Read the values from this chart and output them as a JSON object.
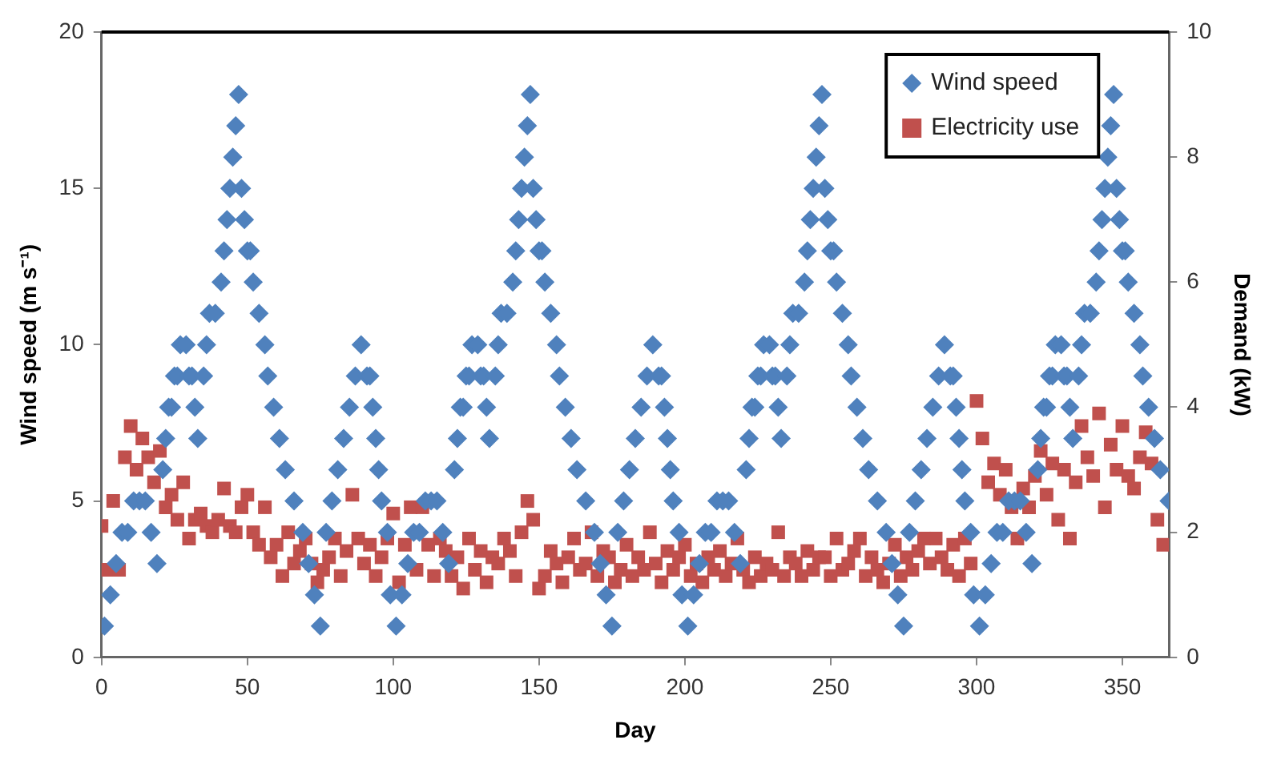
{
  "chart_data": {
    "type": "scatter",
    "xlabel": "Day",
    "ylabel": "Wind speed (m s⁻¹)",
    "y2label": "Demand (kW)",
    "xlim": [
      0,
      366
    ],
    "xticks": [
      0,
      50,
      100,
      150,
      200,
      250,
      300,
      350
    ],
    "ylim": [
      0,
      20
    ],
    "yticks": [
      0,
      5,
      10,
      15,
      20
    ],
    "y2lim": [
      0,
      10
    ],
    "y2ticks": [
      0,
      2,
      4,
      6,
      8,
      10
    ],
    "grid": false,
    "legend": "top right",
    "series": [
      {
        "name": "Wind speed",
        "color": "#4f81bd",
        "marker": "diamond",
        "x": [
          1,
          3,
          5,
          7,
          9,
          11,
          13,
          15,
          17,
          19,
          21,
          22,
          23,
          24,
          25,
          26,
          27,
          29,
          30,
          31,
          32,
          33,
          35,
          36,
          37,
          39,
          41,
          42,
          43,
          44,
          45,
          46,
          47,
          48,
          49,
          50,
          51,
          52,
          54,
          56,
          57,
          59,
          61,
          63,
          66,
          69,
          71,
          73,
          75,
          77,
          79,
          81,
          83,
          85,
          87,
          89,
          91,
          92,
          93,
          94,
          95,
          96,
          98,
          99,
          101,
          103,
          105,
          107,
          109,
          111,
          113,
          115,
          117,
          119,
          121,
          122,
          123,
          124,
          125,
          126,
          127,
          129,
          130,
          131,
          132,
          133,
          135,
          136,
          137,
          139,
          141,
          142,
          143,
          144,
          145,
          146,
          147,
          148,
          149,
          150,
          151,
          152,
          154,
          156,
          157,
          159,
          161,
          163,
          166,
          169,
          171,
          173,
          175,
          177,
          179,
          181,
          183,
          185,
          187,
          189,
          191,
          192,
          193,
          194,
          195,
          196,
          198,
          199,
          201,
          203,
          205,
          207,
          209,
          211,
          213,
          215,
          217,
          219,
          221,
          222,
          223,
          224,
          225,
          226,
          227,
          229,
          230,
          231,
          232,
          233,
          235,
          236,
          237,
          239,
          241,
          242,
          243,
          244,
          245,
          246,
          247,
          248,
          249,
          250,
          251,
          252,
          254,
          256,
          257,
          259,
          261,
          263,
          266,
          269,
          271,
          273,
          275,
          277,
          279,
          281,
          283,
          285,
          287,
          289,
          291,
          292,
          293,
          294,
          295,
          296,
          298,
          299,
          301,
          303,
          305,
          307,
          309,
          311,
          313,
          315,
          317,
          319,
          321,
          322,
          323,
          324,
          325,
          326,
          327,
          329,
          330,
          331,
          332,
          333,
          335,
          336,
          337,
          339,
          341,
          342,
          343,
          344,
          345,
          346,
          347,
          348,
          349,
          350,
          351,
          352,
          354,
          356,
          357,
          359,
          361,
          363,
          366
        ],
        "values": [
          1,
          2,
          3,
          4,
          4,
          5,
          5,
          5,
          4,
          3,
          6,
          7,
          8,
          8,
          9,
          9,
          10,
          10,
          9,
          9,
          8,
          7,
          9,
          10,
          11,
          11,
          12,
          13,
          14,
          15,
          16,
          17,
          18,
          15,
          14,
          13,
          13,
          12,
          11,
          10,
          9,
          8,
          7,
          6,
          5,
          4,
          3,
          2,
          1,
          4,
          5,
          6,
          7,
          8,
          9,
          10,
          9,
          9,
          8,
          7,
          6,
          5,
          4,
          2,
          1,
          2,
          3,
          4,
          4,
          5,
          5,
          5,
          4,
          3,
          6,
          7,
          8,
          8,
          9,
          9,
          10,
          10,
          9,
          9,
          8,
          7,
          9,
          10,
          11,
          11,
          12,
          13,
          14,
          15,
          16,
          17,
          18,
          15,
          14,
          13,
          13,
          12,
          11,
          10,
          9,
          8,
          7,
          6,
          5,
          4,
          3,
          2,
          1,
          4,
          5,
          6,
          7,
          8,
          9,
          10,
          9,
          9,
          8,
          7,
          6,
          5,
          4,
          2,
          1,
          2,
          3,
          4,
          4,
          5,
          5,
          5,
          4,
          3,
          6,
          7,
          8,
          8,
          9,
          9,
          10,
          10,
          9,
          9,
          8,
          7,
          9,
          10,
          11,
          11,
          12,
          13,
          14,
          15,
          16,
          17,
          18,
          15,
          14,
          13,
          13,
          12,
          11,
          10,
          9,
          8,
          7,
          6,
          5,
          4,
          3,
          2,
          1,
          4,
          5,
          6,
          7,
          8,
          9,
          10,
          9,
          9,
          8,
          7,
          6,
          5,
          4,
          2,
          1,
          2,
          3,
          4,
          4,
          5,
          5,
          5,
          4,
          3,
          6,
          7,
          8,
          8,
          9,
          9,
          10,
          10,
          9,
          9,
          8,
          7,
          9,
          10,
          11,
          11,
          12,
          13,
          14,
          15,
          16,
          17,
          18,
          15,
          14,
          13,
          13,
          12,
          11,
          10,
          9,
          8,
          7,
          6,
          5
        ]
      },
      {
        "name": "Electricity use",
        "color": "#c0504d",
        "marker": "square",
        "axis": "y2",
        "x": [
          0,
          2,
          4,
          6,
          8,
          10,
          12,
          14,
          16,
          18,
          20,
          22,
          24,
          26,
          28,
          30,
          32,
          34,
          36,
          38,
          40,
          42,
          44,
          46,
          48,
          50,
          52,
          54,
          56,
          58,
          60,
          62,
          64,
          66,
          68,
          70,
          72,
          74,
          76,
          78,
          80,
          82,
          84,
          86,
          88,
          90,
          92,
          94,
          96,
          98,
          100,
          102,
          104,
          106,
          108,
          110,
          112,
          114,
          116,
          118,
          120,
          122,
          124,
          126,
          128,
          130,
          132,
          134,
          136,
          138,
          140,
          142,
          144,
          146,
          148,
          150,
          152,
          154,
          156,
          158,
          160,
          162,
          164,
          166,
          168,
          170,
          172,
          174,
          176,
          178,
          180,
          182,
          184,
          186,
          188,
          190,
          192,
          194,
          196,
          198,
          200,
          202,
          204,
          206,
          208,
          210,
          212,
          214,
          216,
          218,
          220,
          222,
          224,
          226,
          228,
          230,
          232,
          234,
          236,
          238,
          240,
          242,
          244,
          246,
          248,
          250,
          252,
          254,
          256,
          258,
          260,
          262,
          264,
          266,
          268,
          270,
          272,
          274,
          276,
          278,
          280,
          282,
          284,
          286,
          288,
          290,
          292,
          294,
          296,
          298,
          300,
          302,
          304,
          306,
          308,
          310,
          312,
          314,
          316,
          318,
          320,
          322,
          324,
          326,
          328,
          330,
          332,
          334,
          336,
          338,
          340,
          342,
          344,
          346,
          348,
          350,
          352,
          354,
          356,
          358,
          360,
          362,
          364
        ],
        "values": [
          2.1,
          1.4,
          2.5,
          1.4,
          3.2,
          3.7,
          3.0,
          3.5,
          3.2,
          2.8,
          3.3,
          2.4,
          2.6,
          2.2,
          2.8,
          1.9,
          2.2,
          2.3,
          2.1,
          2.0,
          2.2,
          2.7,
          2.1,
          2.0,
          2.4,
          2.6,
          2.0,
          1.8,
          2.4,
          1.6,
          1.8,
          1.3,
          2.0,
          1.5,
          1.7,
          1.9,
          1.5,
          1.2,
          1.4,
          1.6,
          1.9,
          1.3,
          1.7,
          2.6,
          1.9,
          1.5,
          1.8,
          1.3,
          1.6,
          1.9,
          2.3,
          1.2,
          1.8,
          2.4,
          1.4,
          2.4,
          1.8,
          1.3,
          1.9,
          1.7,
          1.3,
          1.6,
          1.1,
          1.9,
          1.4,
          1.7,
          1.2,
          1.6,
          1.5,
          1.9,
          1.7,
          1.3,
          2.0,
          2.5,
          2.2,
          1.1,
          1.3,
          1.7,
          1.5,
          1.2,
          1.6,
          1.9,
          1.4,
          1.5,
          2.0,
          1.3,
          1.7,
          1.6,
          1.2,
          1.4,
          1.8,
          1.3,
          1.6,
          1.4,
          2.0,
          1.5,
          1.2,
          1.7,
          1.4,
          1.6,
          1.8,
          1.3,
          1.5,
          1.2,
          1.6,
          1.4,
          1.7,
          1.3,
          1.5,
          1.9,
          1.4,
          1.2,
          1.6,
          1.3,
          1.5,
          1.4,
          2.0,
          1.3,
          1.6,
          1.5,
          1.3,
          1.7,
          1.4,
          1.6,
          1.6,
          1.3,
          1.9,
          1.4,
          1.5,
          1.7,
          1.9,
          1.3,
          1.6,
          1.4,
          1.2,
          1.5,
          1.8,
          1.3,
          1.6,
          1.4,
          1.7,
          1.9,
          1.5,
          1.9,
          1.6,
          1.4,
          1.8,
          1.3,
          1.9,
          1.5,
          4.1,
          3.5,
          2.8,
          3.1,
          2.6,
          3.0,
          2.4,
          1.9,
          2.7,
          2.4,
          2.9,
          3.3,
          2.6,
          3.1,
          2.2,
          3.0,
          1.9,
          2.8,
          3.7,
          3.2,
          2.9,
          3.9,
          2.4,
          3.4,
          3.0,
          3.7,
          2.9,
          2.7,
          3.2,
          3.6,
          3.1,
          2.2,
          1.8
        ]
      }
    ]
  }
}
